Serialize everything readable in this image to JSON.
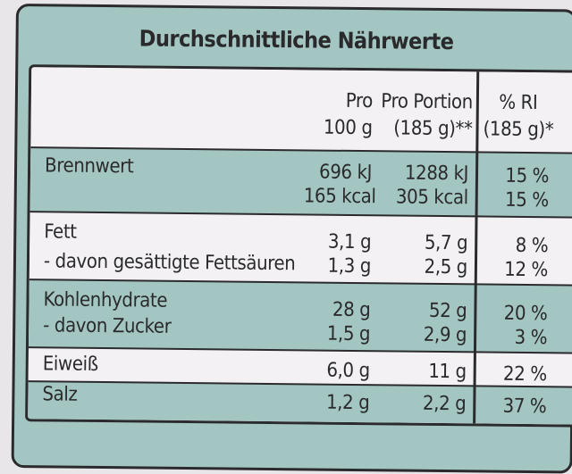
{
  "title": "Durchschnittliche Nährwerte",
  "header": {
    "col1_line1": "Pro",
    "col1_line2": "100 g",
    "col2_line1": "Pro Portion",
    "col2_line2": "(185 g)**",
    "col3_line1": "% RI",
    "col3_line2": "(185 g)*"
  },
  "rows": [
    {
      "label": "Brennwert",
      "per100": "696 kJ",
      "portion": "1288 kJ",
      "ri": "15 %"
    },
    {
      "label": "",
      "per100": "165 kcal",
      "portion": "305 kcal",
      "ri": "15 %"
    },
    {
      "label": "Fett",
      "per100": "3,1 g",
      "portion": "5,7 g",
      "ri": "8 %"
    },
    {
      "label": "- davon gesättigte Fettsäuren",
      "per100": "1,3 g",
      "portion": "2,5 g",
      "ri": "12 %"
    },
    {
      "label": "Kohlenhydrate",
      "per100": "28 g",
      "portion": "52 g",
      "ri": "20 %"
    },
    {
      "label": "- davon Zucker",
      "per100": "1,5 g",
      "portion": "2,9 g",
      "ri": "3 %"
    },
    {
      "label": "Eiweiß",
      "per100": "6,0 g",
      "portion": "11 g",
      "ri": "22 %"
    },
    {
      "label": "Salz",
      "per100": "1,2 g",
      "portion": "2,2 g",
      "ri": "37 %"
    }
  ],
  "colors": {
    "teal": "#a3c6c2",
    "paper": "#f3f1f4",
    "ink": "#2b2b2d"
  }
}
